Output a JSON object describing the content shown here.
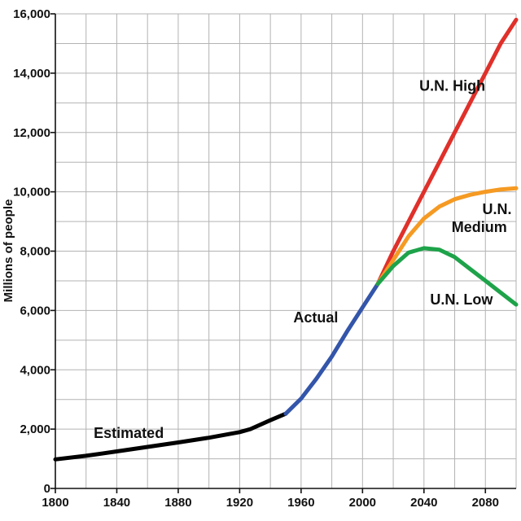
{
  "chart_data": {
    "type": "line",
    "ylabel": "Millions of people",
    "xlabel": "",
    "xlim": [
      1800,
      2100
    ],
    "ylim": [
      0,
      16000
    ],
    "grid": true,
    "x_ticks": [
      1800,
      1840,
      1880,
      1920,
      1960,
      2000,
      2040,
      2080
    ],
    "x_tick_labels": [
      "1800",
      "1840",
      "1880",
      "1920",
      "1960",
      "2000",
      "2040",
      "2080"
    ],
    "y_ticks": [
      0,
      2000,
      4000,
      6000,
      8000,
      10000,
      12000,
      14000,
      16000
    ],
    "y_tick_labels": [
      "0",
      "2,000",
      "4,000",
      "6,000",
      "8,000",
      "10,000",
      "12,000",
      "14,000",
      "16,000"
    ],
    "series": [
      {
        "name": "Estimated",
        "color": "#000000",
        "x": [
          1800,
          1820,
          1840,
          1860,
          1880,
          1900,
          1920,
          1927,
          1940,
          1950
        ],
        "y": [
          980,
          1100,
          1250,
          1400,
          1550,
          1710,
          1900,
          2000,
          2300,
          2520
        ]
      },
      {
        "name": "Actual",
        "color": "#3355aa",
        "x": [
          1950,
          1960,
          1970,
          1980,
          1990,
          2000,
          2010
        ],
        "y": [
          2520,
          3030,
          3700,
          4450,
          5300,
          6100,
          6900
        ]
      },
      {
        "name": "U.N. High",
        "color": "#e0302a",
        "x": [
          2010,
          2020,
          2030,
          2040,
          2050,
          2060,
          2070,
          2080,
          2090,
          2100
        ],
        "y": [
          6900,
          8000,
          9000,
          10000,
          11000,
          12000,
          13000,
          14000,
          15000,
          15800
        ]
      },
      {
        "name": "U.N. Medium",
        "color": "#f59a23",
        "x": [
          2010,
          2020,
          2030,
          2040,
          2050,
          2060,
          2070,
          2080,
          2090,
          2100
        ],
        "y": [
          6900,
          7700,
          8500,
          9100,
          9500,
          9750,
          9900,
          10000,
          10080,
          10120
        ]
      },
      {
        "name": "U.N. Low",
        "color": "#1ea34a",
        "x": [
          2010,
          2020,
          2030,
          2040,
          2050,
          2060,
          2070,
          2080,
          2090,
          2100
        ],
        "y": [
          6900,
          7500,
          7950,
          8100,
          8050,
          7800,
          7400,
          7000,
          6600,
          6200
        ]
      }
    ],
    "annotations": [
      {
        "text": "Estimated",
        "x": 1825,
        "y": 1700
      },
      {
        "text": "Actual",
        "x": 1955,
        "y": 5600
      },
      {
        "text": "U.N. High",
        "x": 2037,
        "y": 13400
      },
      {
        "text": "U.N.",
        "x": 2078,
        "y": 9250
      },
      {
        "text": "Medium",
        "x": 2058,
        "y": 8650
      },
      {
        "text": "U.N. Low",
        "x": 2044,
        "y": 6200
      }
    ]
  }
}
